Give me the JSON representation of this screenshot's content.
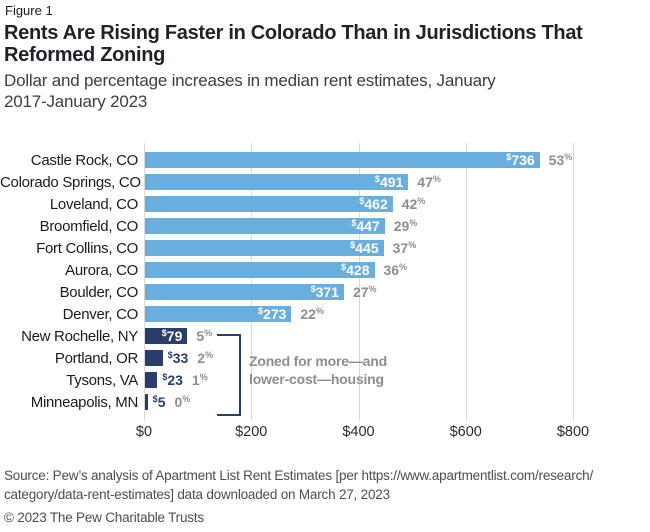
{
  "figure_label": "Figure 1",
  "title_lines": [
    "Rents Are Rising Faster in Colorado Than in Jurisdictions That",
    "Reformed Zoning"
  ],
  "subtitle_lines": [
    "Dollar and percentage increases in median rent estimates, January",
    "2017-January 2023"
  ],
  "chart_data": {
    "type": "bar",
    "orientation": "horizontal",
    "categories": [
      "Castle Rock, CO",
      "Colorado Springs, CO",
      "Loveland, CO",
      "Broomfield, CO",
      "Fort Collins, CO",
      "Aurora, CO",
      "Boulder, CO",
      "Denver, CO",
      "New Rochelle, NY",
      "Portland, OR",
      "Tysons, VA",
      "Minneapolis, MN"
    ],
    "series": [
      {
        "name": "Dollar increase in median rent",
        "values": [
          736,
          491,
          462,
          447,
          445,
          428,
          371,
          273,
          79,
          33,
          23,
          5
        ]
      },
      {
        "name": "Percentage increase in median rent",
        "values": [
          53,
          47,
          42,
          29,
          37,
          36,
          27,
          22,
          5,
          2,
          1,
          0
        ]
      }
    ],
    "xlim": [
      0,
      800
    ],
    "x_tick_values": [
      0,
      200,
      400,
      600,
      800
    ],
    "x_tick_labels": [
      "$0",
      "$200",
      "$400",
      "$600",
      "$800"
    ],
    "grid": "vertical",
    "annotation": {
      "line1": "Zoned for more—and",
      "line2": "lower-cost—housing",
      "applies_to": [
        "New Rochelle, NY",
        "Portland, OR",
        "Tysons, VA",
        "Minneapolis, MN"
      ]
    },
    "colors": {
      "colorado_bar": "#68aedf",
      "reformed_zoning_bar": "#2a3e6e",
      "percent_label": "#8b8e90",
      "inside_dollar_label": "#ffffff",
      "gridline": "#d8d8d8"
    }
  },
  "source_lines": [
    "Source: Pew’s analysis of Apartment List Rent Estimates [per https://www.apartmentlist.com/research/",
    "category/data-rent-estimates] data downloaded on March 27, 2023"
  ],
  "copyright": "© 2023 The Pew Charitable Trusts"
}
